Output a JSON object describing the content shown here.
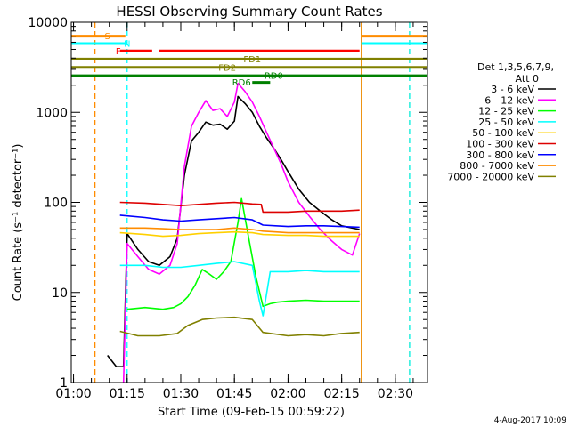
{
  "chart_data": {
    "type": "line",
    "title": "HESSI Observing Summary Count Rates",
    "xlabel": "Start Time (09-Feb-15 00:59:22)",
    "ylabel": "Count Rate (s⁻¹ detector⁻¹)",
    "yscale": "log",
    "xlim": [
      "00:59:22",
      "02:39:00"
    ],
    "ylim": [
      1,
      10000
    ],
    "x_ticks": [
      "01:00",
      "01:15",
      "01:30",
      "01:45",
      "02:00",
      "02:15",
      "02:30"
    ],
    "y_ticks": [
      "1",
      "10",
      "100",
      "1000",
      "10000"
    ],
    "legend_placement": "right",
    "legend_title": "Det 1,3,5,6,7,9,",
    "legend_subtitle": "Att 0",
    "footer_date": "4-Aug-2017 10:09",
    "series": [
      {
        "name": "3 - 6 keV",
        "color": "#000000",
        "x": [
          "01:09:30",
          "01:12:00",
          "01:14:00",
          "01:15:00",
          "01:18:00",
          "01:21:00",
          "01:24:00",
          "01:27:00",
          "01:29:00",
          "01:31:00",
          "01:33:00",
          "01:35:00",
          "01:37:00",
          "01:39:00",
          "01:41:00",
          "01:43:00",
          "01:45:00",
          "01:46:00",
          "01:48:00",
          "01:50:00",
          "01:52:00",
          "01:54:00",
          "01:56:00",
          "01:58:00",
          "02:00:00",
          "02:03:00",
          "02:06:00",
          "02:09:00",
          "02:12:00",
          "02:15:00",
          "02:18:00",
          "02:20:00"
        ],
        "y": [
          2,
          1.5,
          1.5,
          45,
          30,
          22,
          20,
          25,
          40,
          200,
          480,
          600,
          780,
          720,
          740,
          650,
          800,
          1500,
          1250,
          1000,
          700,
          520,
          400,
          300,
          220,
          140,
          100,
          80,
          65,
          55,
          52,
          50
        ]
      },
      {
        "name": "6 - 12 keV",
        "color": "#ff00ff",
        "x": [
          "01:14:00",
          "01:15:00",
          "01:18:00",
          "01:21:00",
          "01:24:00",
          "01:27:00",
          "01:29:00",
          "01:31:00",
          "01:33:00",
          "01:35:00",
          "01:37:00",
          "01:39:00",
          "01:41:00",
          "01:43:00",
          "01:45:00",
          "01:46:00",
          "01:48:00",
          "01:50:00",
          "01:52:00",
          "01:54:00",
          "01:56:00",
          "01:58:00",
          "02:00:00",
          "02:03:00",
          "02:06:00",
          "02:09:00",
          "02:12:00",
          "02:15:00",
          "02:18:00",
          "02:20:00"
        ],
        "y": [
          1,
          35,
          25,
          18,
          16,
          20,
          35,
          250,
          700,
          1000,
          1350,
          1050,
          1100,
          900,
          1300,
          2100,
          1700,
          1300,
          900,
          600,
          400,
          270,
          170,
          100,
          70,
          50,
          38,
          30,
          26,
          45
        ]
      },
      {
        "name": "12 - 25 keV",
        "color": "#00ff00",
        "x": [
          "01:15:00",
          "01:20:00",
          "01:25:00",
          "01:28:00",
          "01:30:00",
          "01:32:00",
          "01:34:00",
          "01:36:00",
          "01:38:00",
          "01:40:00",
          "01:42:00",
          "01:44:00",
          "01:46:00",
          "01:47:00",
          "01:49:00",
          "01:51:00",
          "01:53:00",
          "01:55:00",
          "01:57:00",
          "02:00:00",
          "02:05:00",
          "02:10:00",
          "02:15:00",
          "02:20:00"
        ],
        "y": [
          6.5,
          6.8,
          6.5,
          6.8,
          7.5,
          9,
          12,
          18,
          16,
          14,
          17,
          22,
          60,
          110,
          40,
          15,
          7,
          7.5,
          7.8,
          8,
          8.2,
          8,
          8,
          8
        ]
      },
      {
        "name": "25 - 50 keV",
        "color": "#00ffff",
        "x": [
          "01:13:00",
          "01:20:00",
          "01:25:00",
          "01:30:00",
          "01:35:00",
          "01:40:00",
          "01:45:00",
          "01:50:00",
          "01:52:00",
          "01:53:00",
          "01:55:00",
          "02:00:00",
          "02:05:00",
          "02:10:00",
          "02:15:00",
          "02:20:00"
        ],
        "y": [
          20,
          20,
          19,
          19,
          20,
          21,
          22,
          20,
          8,
          5.5,
          17,
          17,
          17.5,
          17,
          17,
          17
        ]
      },
      {
        "name": "50 - 100 keV",
        "color": "#ffd000",
        "x": [
          "01:13:00",
          "01:20:00",
          "01:25:00",
          "01:30:00",
          "01:35:00",
          "01:40:00",
          "01:45:00",
          "01:50:00",
          "01:53:00",
          "02:00:00",
          "02:05:00",
          "02:10:00",
          "02:15:00",
          "02:20:00"
        ],
        "y": [
          46,
          44,
          42,
          43,
          45,
          46,
          47,
          46,
          44,
          43,
          43,
          42,
          42,
          42
        ]
      },
      {
        "name": "100 - 300 keV",
        "color": "#dd0000",
        "x": [
          "01:13:00",
          "01:20:00",
          "01:25:00",
          "01:30:00",
          "01:35:00",
          "01:40:00",
          "01:45:00",
          "01:50:00",
          "01:52:30",
          "01:53:00",
          "02:00:00",
          "02:05:00",
          "02:10:00",
          "02:15:00",
          "02:20:00"
        ],
        "y": [
          100,
          98,
          95,
          92,
          95,
          98,
          100,
          96,
          95,
          78,
          78,
          80,
          80,
          80,
          82
        ]
      },
      {
        "name": "300 - 800 keV",
        "color": "#0000ff",
        "x": [
          "01:13:00",
          "01:20:00",
          "01:25:00",
          "01:30:00",
          "01:35:00",
          "01:40:00",
          "01:45:00",
          "01:50:00",
          "01:53:00",
          "02:00:00",
          "02:05:00",
          "02:10:00",
          "02:15:00",
          "02:20:00"
        ],
        "y": [
          72,
          68,
          64,
          62,
          64,
          66,
          68,
          64,
          56,
          54,
          55,
          55,
          54,
          53
        ]
      },
      {
        "name": "800 - 7000 keV",
        "color": "#ff8c00",
        "x": [
          "01:13:00",
          "01:20:00",
          "01:25:00",
          "01:30:00",
          "01:35:00",
          "01:40:00",
          "01:45:00",
          "01:50:00",
          "01:53:00",
          "02:00:00",
          "02:05:00",
          "02:10:00",
          "02:15:00",
          "02:20:00"
        ],
        "y": [
          52,
          52,
          51,
          50,
          50,
          50,
          52,
          50,
          48,
          46,
          46,
          46,
          46,
          46
        ]
      },
      {
        "name": "7000 - 20000 keV",
        "color": "#808000",
        "x": [
          "01:13:00",
          "01:18:00",
          "01:24:00",
          "01:29:00",
          "01:32:00",
          "01:36:00",
          "01:40:00",
          "01:45:00",
          "01:50:00",
          "01:53:00",
          "02:00:00",
          "02:05:00",
          "02:10:00",
          "02:15:00",
          "02:20:00"
        ],
        "y": [
          3.7,
          3.3,
          3.3,
          3.5,
          4.3,
          5.0,
          5.2,
          5.3,
          5.0,
          3.6,
          3.3,
          3.4,
          3.3,
          3.5,
          3.6
        ]
      }
    ],
    "flags": [
      {
        "label": "S",
        "color": "#ff8c00",
        "start": "00:59:22",
        "end": "01:14:30",
        "y": 7000,
        "label_at": "01:09:30"
      },
      {
        "label": "S",
        "color": "#ff8c00",
        "start": "02:20:30",
        "end": "02:39:00",
        "y": 7000,
        "label_at": ""
      },
      {
        "label": "N",
        "color": "#00ffff",
        "start": "00:59:22",
        "end": "01:14:30",
        "y": 5800,
        "label_at": "01:15:00"
      },
      {
        "label": "N",
        "color": "#00ffff",
        "start": "02:20:30",
        "end": "02:39:00",
        "y": 5800,
        "label_at": ""
      },
      {
        "label": "F",
        "color": "#ff0000",
        "start": "01:13:00",
        "end": "01:22:00",
        "y": 4800,
        "label_at": "01:12:30"
      },
      {
        "label": "",
        "color": "#ff0000",
        "start": "01:24:00",
        "end": "02:20:00",
        "y": 4800,
        "label_at": ""
      },
      {
        "label": "FD1",
        "color": "#808000",
        "start": "00:59:22",
        "end": "02:39:00",
        "y": 3900,
        "label_at": "01:50:00"
      },
      {
        "label": "FD2",
        "color": "#808000",
        "start": "00:59:22",
        "end": "02:39:00",
        "y": 3150,
        "label_at": "01:43:00"
      },
      {
        "label": "RD0",
        "color": "#008000",
        "start": "00:59:22",
        "end": "02:39:00",
        "y": 2550,
        "label_at": "01:56:00"
      },
      {
        "label": "RD6",
        "color": "#008000",
        "start": "01:50:00",
        "end": "01:55:00",
        "y": 2150,
        "label_at": "01:47:00"
      }
    ],
    "vertical_lines": [
      {
        "x": "01:06:00",
        "color": "#ff8c00",
        "style": "dashed"
      },
      {
        "x": "01:15:00",
        "color": "#00ffff",
        "style": "dashed"
      },
      {
        "x": "02:20:30",
        "color": "#00ffff",
        "style": "solid"
      },
      {
        "x": "02:20:30",
        "color": "#ff8c00",
        "style": "solid"
      },
      {
        "x": "02:34:00",
        "color": "#ff8c00",
        "style": "dashed"
      },
      {
        "x": "02:34:00",
        "color": "#00ffff",
        "style": "dashed"
      }
    ]
  }
}
